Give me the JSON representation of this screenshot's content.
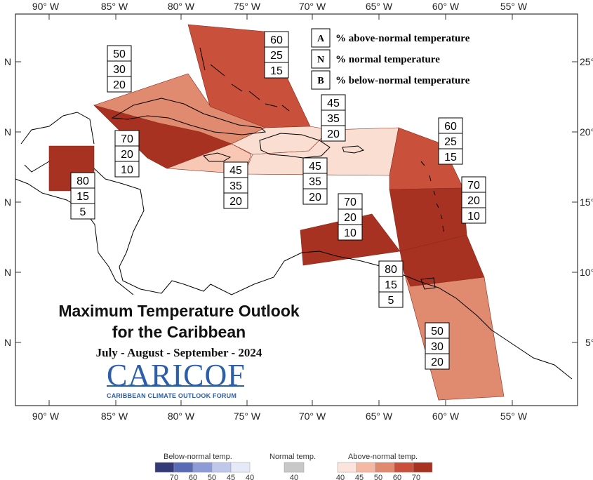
{
  "title": {
    "line1": "Maximum Temperature Outlook",
    "line2": "for the Caribbean",
    "period": "July - August - September - 2024"
  },
  "logo": {
    "name": "CARICOF",
    "subtitle": "CARIBBEAN CLIMATE OUTLOOK FORUM"
  },
  "axes": {
    "longitude_ticks": [
      "90° W",
      "85° W",
      "80° W",
      "75° W",
      "70° W",
      "65° W",
      "60° W",
      "55° W"
    ],
    "latitude_ticks_left": [
      "N",
      "N",
      "N",
      "N",
      "N"
    ],
    "latitude_ticks_right": [
      "25°",
      "20°",
      "15°",
      "10°",
      "5°"
    ]
  },
  "key": [
    {
      "letter": "A",
      "text": "% above-normal temperature"
    },
    {
      "letter": "N",
      "text": "% normal temperature"
    },
    {
      "letter": "B",
      "text": "% below-normal temperature"
    }
  ],
  "regions": [
    {
      "name": "bahamas-turks-caicos",
      "above": "60",
      "normal": "25",
      "below": "15",
      "color": "#c9503a"
    },
    {
      "name": "cuba-west",
      "above": "50",
      "normal": "30",
      "below": "20",
      "color": "#e08a70"
    },
    {
      "name": "cayman-cuba-south",
      "above": "70",
      "normal": "20",
      "below": "10",
      "color": "#a83222"
    },
    {
      "name": "belize",
      "above": "80",
      "normal": "15",
      "below": "5",
      "color": "#a83222"
    },
    {
      "name": "jamaica",
      "above": "45",
      "normal": "35",
      "below": "20",
      "color": "#f8c8b5"
    },
    {
      "name": "hispaniola-north",
      "above": "45",
      "normal": "35",
      "below": "20",
      "color": "#fbded2"
    },
    {
      "name": "hispaniola-puerto-rico",
      "above": "45",
      "normal": "35",
      "below": "20",
      "color": "#fbded2"
    },
    {
      "name": "leeward-islands",
      "above": "60",
      "normal": "25",
      "below": "15",
      "color": "#c9503a"
    },
    {
      "name": "windward-islands",
      "above": "70",
      "normal": "20",
      "below": "10",
      "color": "#a83222"
    },
    {
      "name": "abc-islands",
      "above": "70",
      "normal": "20",
      "below": "10",
      "color": "#a83222"
    },
    {
      "name": "trinidad-tobago",
      "above": "80",
      "normal": "15",
      "below": "5",
      "color": "#a83222"
    },
    {
      "name": "guianas",
      "above": "50",
      "normal": "30",
      "below": "20",
      "color": "#e08a70"
    }
  ],
  "colorbar": {
    "below_label": "Below-normal temp.",
    "normal_label": "Normal temp.",
    "above_label": "Above-normal temp.",
    "below_ticks": [
      "70",
      "60",
      "50",
      "45",
      "40"
    ],
    "normal_ticks": [
      "40"
    ],
    "above_ticks": [
      "40",
      "45",
      "50",
      "60",
      "70"
    ],
    "below_colors": [
      "#343a78",
      "#5a6bb5",
      "#8d9bd6",
      "#bfc7ea",
      "#e6eaf8"
    ],
    "normal_color": "#c8c8c8",
    "above_colors": [
      "#fbe4dc",
      "#f5b9a3",
      "#e08a70",
      "#c9503a",
      "#a83222"
    ]
  }
}
